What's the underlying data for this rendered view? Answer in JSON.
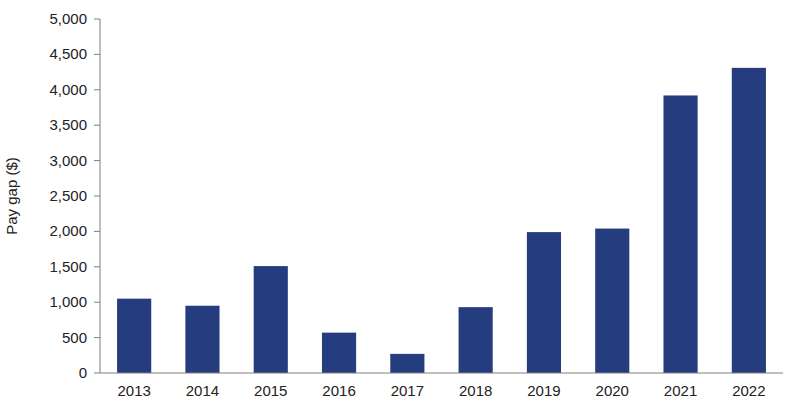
{
  "chart_data": {
    "type": "bar",
    "y_label": "Pay gap ($)",
    "categories": [
      "2013",
      "2014",
      "2015",
      "2016",
      "2017",
      "2018",
      "2019",
      "2020",
      "2021",
      "2022"
    ],
    "values": [
      1050,
      950,
      1510,
      570,
      270,
      930,
      1990,
      2040,
      3920,
      4310
    ],
    "color": "#253c7e",
    "ylim": [
      0,
      5000
    ],
    "yticks": [
      0,
      500,
      {
        "value": 1000,
        "label": "1,000"
      },
      {
        "value": 1500,
        "label": "1,500"
      },
      {
        "value": 2000,
        "label": "2,000"
      },
      {
        "value": 2500,
        "label": "2,500"
      },
      {
        "value": 3000,
        "label": "3,000"
      },
      {
        "value": 3500,
        "label": "3,500"
      },
      {
        "value": 4000,
        "label": "4,000"
      },
      {
        "value": 4500,
        "label": "4,500"
      },
      {
        "value": 5000,
        "label": "5,000"
      }
    ],
    "grid": false
  }
}
